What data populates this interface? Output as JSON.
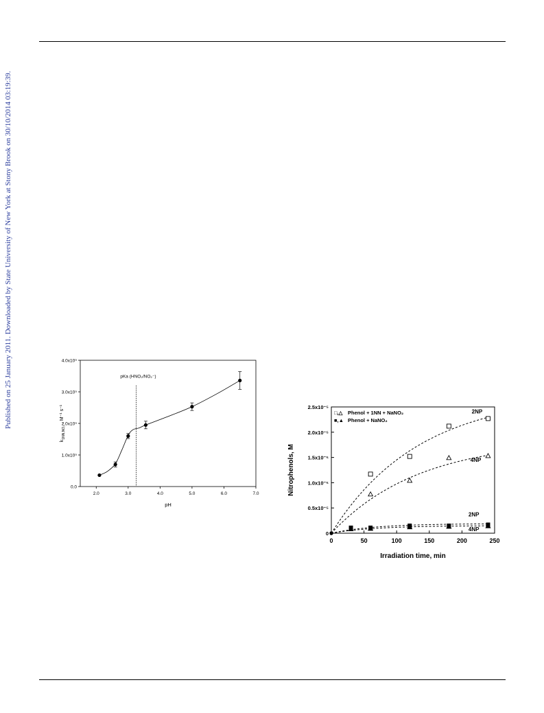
{
  "header_rule": true,
  "side_note": "Published on 25 January 2011. Downloaded by State University of New York at Stony Brook on 30/10/2014 03:19:39.",
  "colors": {
    "side_note": "#2a3c9c",
    "axis": "#000000",
    "line": "#000000"
  },
  "chart_data": [
    {
      "type": "scatter",
      "title": "",
      "xlabel": "pH",
      "ylabel": "k",
      "ylabel_sub": "1NN,NO₂⁻",
      "ylabel_units": ", M⁻¹ s⁻¹",
      "xlim": [
        1.5,
        7.0
      ],
      "ylim": [
        0.0,
        4.0
      ],
      "xticks": [
        2.0,
        3.0,
        4.0,
        5.0,
        6.0,
        7.0
      ],
      "xtick_labels": [
        "2.0",
        "3.0",
        "4.0",
        "5.0",
        "6.0",
        "7.0"
      ],
      "yticks": [
        0.0,
        1.0,
        2.0,
        3.0,
        4.0
      ],
      "ytick_labels": [
        "0.0",
        "1.0x10⁹",
        "2.0x10⁹",
        "3.0x10⁹",
        "4.0x10⁹"
      ],
      "points": [
        {
          "x": 2.1,
          "y": 0.36,
          "err": 0
        },
        {
          "x": 2.6,
          "y": 0.7,
          "err": 0.08
        },
        {
          "x": 3.0,
          "y": 1.6,
          "err": 0.08
        },
        {
          "x": 3.55,
          "y": 1.95,
          "err": 0.12
        },
        {
          "x": 5.0,
          "y": 2.53,
          "err": 0.12
        },
        {
          "x": 6.5,
          "y": 3.36,
          "err": 0.28
        }
      ],
      "fit_curve": [
        [
          2.1,
          0.36
        ],
        [
          2.35,
          0.48
        ],
        [
          2.6,
          0.72
        ],
        [
          2.8,
          1.15
        ],
        [
          3.0,
          1.62
        ],
        [
          3.15,
          1.8
        ],
        [
          3.35,
          1.86
        ],
        [
          3.55,
          1.95
        ],
        [
          4.2,
          2.2
        ],
        [
          5.0,
          2.53
        ],
        [
          5.8,
          2.95
        ],
        [
          6.5,
          3.36
        ]
      ],
      "vline": {
        "x": 3.25,
        "label": "pKa (HNO₂/NO₂⁻)"
      },
      "grid": false
    },
    {
      "type": "scatter",
      "title": "",
      "xlabel": "Irradiation time, min",
      "ylabel": "Nitrophenols, M",
      "xlim": [
        0,
        250
      ],
      "ylim": [
        0,
        2.5
      ],
      "xticks": [
        0,
        50,
        100,
        150,
        200,
        250
      ],
      "xtick_labels": [
        "0",
        "50",
        "100",
        "150",
        "200",
        "250"
      ],
      "yticks": [
        0,
        0.5,
        1.0,
        1.5,
        2.0,
        2.5
      ],
      "ytick_labels": [
        "0",
        "0.5x10⁻⁵",
        "1.0x10⁻⁵",
        "1.5x10⁻⁵",
        "2.0x10⁻⁵",
        "2.5x10⁻⁵"
      ],
      "legend": [
        {
          "markers": "□,△",
          "label": "Phenol + 1NN + NaNO₂"
        },
        {
          "markers": "■,▲",
          "label": "Phenol + NaNO₂"
        }
      ],
      "series": [
        {
          "marker": "open-square",
          "x": [
            0,
            60,
            120,
            180,
            240
          ],
          "y": [
            0,
            1.17,
            1.52,
            2.12,
            2.27
          ],
          "curve_label": "2NP",
          "fit_a": 2.75,
          "fit_k": 0.0075
        },
        {
          "marker": "open-triangle",
          "x": [
            0,
            60,
            120,
            180,
            240
          ],
          "y": [
            0,
            0.77,
            1.04,
            1.49,
            1.53
          ],
          "curve_label": "4NP",
          "fit_a": 1.85,
          "fit_k": 0.0075
        },
        {
          "marker": "filled-square",
          "x": [
            0,
            30,
            60,
            120,
            180,
            240
          ],
          "y": [
            0,
            0.11,
            0.11,
            0.15,
            0.15,
            0.17
          ],
          "curve_label": "2NP",
          "fit_a": 0.19,
          "fit_k": 0.015
        },
        {
          "marker": "filled-triangle",
          "x": [
            0,
            30,
            60,
            120,
            180,
            240
          ],
          "y": [
            0,
            0.08,
            0.09,
            0.12,
            0.13,
            0.14
          ],
          "curve_label": "4NP",
          "fit_a": 0.15,
          "fit_k": 0.015
        }
      ],
      "grid": false
    }
  ]
}
